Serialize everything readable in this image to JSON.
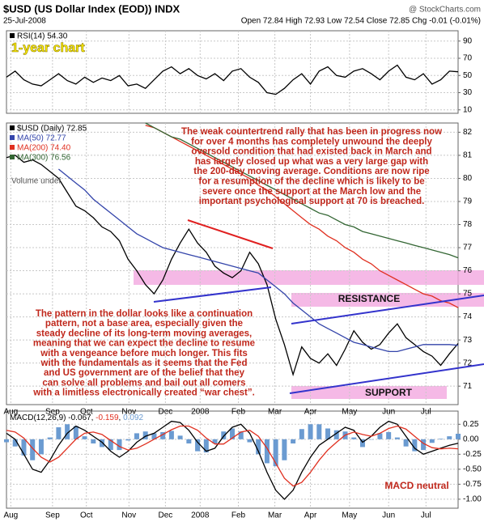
{
  "header": {
    "symbol": "$USD (US Dollar Index (EOD)) INDX",
    "date": "25-Jul-2008",
    "source": "@ StockCharts.com",
    "quote": "Open 72.84 High 72.93 Low 72.54 Close 72.85 Chg -0.01 (-0.01%)"
  },
  "annotations": {
    "period": "1-year chart",
    "volume": "Volume undef",
    "resistance": "RESISTANCE",
    "support": "SUPPORT",
    "macd_note": "MACD neutral",
    "commentary": [
      "The weak countertrend rally that has been in progress now",
      "for over 4 months has completely unwound the deeply",
      "oversold condition that had existed back in March and",
      "has largely closed up what was a very large gap with",
      "the 200-day moving average. Conditions are now ripe",
      "for a resumption of the decline which is likely to be",
      "severe once the support at the March low and the",
      "important psychological support at 70 is breached."
    ],
    "pattern": [
      "The pattern in the dollar looks like a continuation",
      "pattern, not a base area, especially given the",
      "steady decline of its long-term moving averages,",
      "meaning that we can expect the decline to resume",
      "with a vengeance before much longer. This fits",
      "with the fundamentals as it seems that the Fed",
      "and US government are of the belief that they",
      "can solve all problems and bail out all comers",
      "with a limitless electronically created “war chest”."
    ]
  },
  "chart_data": [
    {
      "type": "line",
      "xlim": [
        0,
        52
      ],
      "ylim": [
        6,
        102
      ],
      "yticks": [
        10,
        30,
        50,
        70,
        90
      ],
      "grid": true,
      "series": [
        {
          "name": "RSI(14) 54.30",
          "color": "#000000",
          "values": [
            48,
            55,
            45,
            40,
            38,
            45,
            52,
            44,
            40,
            48,
            42,
            47,
            44,
            50,
            38,
            40,
            35,
            45,
            55,
            60,
            52,
            58,
            50,
            46,
            52,
            44,
            55,
            58,
            48,
            42,
            30,
            28,
            35,
            45,
            52,
            40,
            55,
            60,
            50,
            48,
            55,
            58,
            52,
            45,
            55,
            62,
            48,
            45,
            52,
            40,
            45,
            55,
            54.3
          ]
        }
      ]
    },
    {
      "type": "line",
      "xlim": [
        0,
        52
      ],
      "ylim": [
        70.2,
        82.4
      ],
      "yticks": [
        71,
        72,
        73,
        74,
        75,
        76,
        77,
        78,
        79,
        80,
        81,
        82
      ],
      "grid": true,
      "xticks": [
        {
          "value": 0.5,
          "label": "Aug"
        },
        {
          "value": 5.3,
          "label": "Sep"
        },
        {
          "value": 9.2,
          "label": "Oct"
        },
        {
          "value": 14.1,
          "label": "Nov"
        },
        {
          "value": 18.3,
          "label": "Dec"
        },
        {
          "value": 22.3,
          "label": "2008"
        },
        {
          "value": 26.7,
          "label": "Feb"
        },
        {
          "value": 30.9,
          "label": "Mar"
        },
        {
          "value": 35,
          "label": "Apr"
        },
        {
          "value": 39.5,
          "label": "May"
        },
        {
          "value": 44,
          "label": "Jun"
        },
        {
          "value": 48.3,
          "label": "Jul"
        }
      ],
      "series": [
        {
          "name": "$USD (Daily) 72.85",
          "color": "#000000",
          "values": [
            80.9,
            81.0,
            80.7,
            80.8,
            80.6,
            80.3,
            80.0,
            79.4,
            78.8,
            78.6,
            78.3,
            77.9,
            77.7,
            77.3,
            76.5,
            76.0,
            75.4,
            75.0,
            75.6,
            76.5,
            77.2,
            77.8,
            77.2,
            76.8,
            76.2,
            75.9,
            75.7,
            76.0,
            76.8,
            76.3,
            75.4,
            73.9,
            72.8,
            71.5,
            72.7,
            72.2,
            72.0,
            72.4,
            71.9,
            72.6,
            73.4,
            72.9,
            72.6,
            72.8,
            73.3,
            73.7,
            73.1,
            72.8,
            72.5,
            72.3,
            71.9,
            72.4,
            72.85
          ]
        },
        {
          "name": "MA(50) 72.77",
          "color": "#3344aa",
          "values": [
            null,
            null,
            null,
            null,
            null,
            null,
            80.4,
            80.1,
            79.8,
            79.5,
            79.1,
            78.8,
            78.5,
            78.2,
            77.9,
            77.6,
            77.4,
            77.2,
            77.0,
            76.9,
            76.8,
            76.7,
            76.6,
            76.5,
            76.4,
            76.3,
            76.2,
            76.1,
            76.0,
            75.9,
            75.6,
            75.3,
            75.0,
            74.6,
            74.3,
            74.0,
            73.7,
            73.5,
            73.3,
            73.1,
            72.9,
            72.8,
            72.7,
            72.6,
            72.5,
            72.5,
            72.6,
            72.7,
            72.8,
            72.8,
            72.8,
            72.8,
            72.77
          ]
        },
        {
          "name": "MA(200) 74.40",
          "color": "#e03020",
          "values": [
            null,
            null,
            null,
            null,
            null,
            null,
            null,
            null,
            null,
            null,
            null,
            null,
            null,
            null,
            null,
            null,
            82.3,
            82.2,
            82.0,
            81.8,
            81.6,
            81.4,
            81.2,
            81.0,
            80.8,
            80.6,
            80.4,
            80.2,
            80.0,
            79.7,
            79.5,
            79.2,
            78.9,
            78.6,
            78.3,
            78.0,
            77.8,
            77.5,
            77.3,
            77.0,
            76.8,
            76.5,
            76.3,
            76.0,
            75.8,
            75.6,
            75.4,
            75.2,
            75.0,
            74.9,
            74.7,
            74.6,
            74.4
          ]
        },
        {
          "name": "MA(300) 76.56",
          "color": "#336633",
          "values": [
            null,
            null,
            null,
            null,
            null,
            null,
            null,
            null,
            null,
            null,
            null,
            null,
            null,
            null,
            null,
            null,
            82.4,
            82.2,
            82.0,
            81.8,
            81.7,
            81.5,
            81.3,
            81.1,
            80.9,
            80.7,
            80.5,
            80.3,
            80.1,
            79.9,
            79.7,
            79.5,
            79.3,
            79.1,
            78.9,
            78.7,
            78.5,
            78.4,
            78.2,
            78.0,
            77.9,
            77.7,
            77.6,
            77.5,
            77.4,
            77.3,
            77.2,
            77.1,
            77.0,
            76.9,
            76.8,
            76.7,
            76.56
          ]
        }
      ]
    },
    {
      "type": "line",
      "xlim": [
        0,
        52
      ],
      "ylim": [
        -1.15,
        0.47
      ],
      "grid": true,
      "yticks": [
        0.25,
        {
          "value": 0,
          "label": "0.00"
        },
        -0.25,
        {
          "value": -0.5,
          "label": "-0.50"
        },
        -0.75,
        {
          "value": -1,
          "label": "-1.00"
        }
      ],
      "xticks": [
        {
          "value": 0.5,
          "label": "Aug"
        },
        {
          "value": 5.3,
          "label": "Sep"
        },
        {
          "value": 9.2,
          "label": "Oct"
        },
        {
          "value": 14.1,
          "label": "Nov"
        },
        {
          "value": 18.3,
          "label": "Dec"
        },
        {
          "value": 22.3,
          "label": "2008"
        },
        {
          "value": 26.7,
          "label": "Feb"
        },
        {
          "value": 30.9,
          "label": "Mar"
        },
        {
          "value": 35,
          "label": "Apr"
        },
        {
          "value": 39.5,
          "label": "May"
        },
        {
          "value": 44,
          "label": "Jun"
        },
        {
          "value": 48.3,
          "label": "Jul"
        }
      ],
      "legend": {
        "label": "MACD(12,26,9)",
        "values": [
          "-0.067",
          "-0.159",
          "0.092"
        ]
      },
      "series": [
        {
          "name": "MACD",
          "type": "bar",
          "color": "#6b9bd1",
          "values": [
            -0.05,
            -0.12,
            -0.27,
            -0.35,
            -0.25,
            0.03,
            0.2,
            0.25,
            0.22,
            0.05,
            -0.07,
            -0.13,
            -0.18,
            -0.18,
            -0.02,
            0.1,
            0.13,
            0.1,
            0.12,
            0.14,
            0.06,
            -0.07,
            -0.2,
            -0.22,
            -0.07,
            0.13,
            0.18,
            0.13,
            -0.05,
            -0.25,
            -0.4,
            -0.45,
            -0.35,
            -0.07,
            0.17,
            0.25,
            0.25,
            0.18,
            0.15,
            0.13,
            0.03,
            -0.13,
            0.0,
            0.1,
            0.12,
            0.03,
            -0.12,
            -0.2,
            -0.18,
            -0.06,
            0.01,
            0.05,
            0.092
          ]
        },
        {
          "name": "MACD line",
          "color": "#000000",
          "values": [
            0.1,
            0.0,
            -0.25,
            -0.5,
            -0.55,
            -0.35,
            -0.1,
            0.1,
            0.22,
            0.15,
            0.05,
            -0.05,
            -0.2,
            -0.3,
            -0.2,
            -0.05,
            0.05,
            0.1,
            0.2,
            0.3,
            0.28,
            0.15,
            -0.05,
            -0.2,
            -0.15,
            0.05,
            0.2,
            0.25,
            0.1,
            -0.2,
            -0.55,
            -0.85,
            -1.0,
            -0.85,
            -0.55,
            -0.3,
            -0.1,
            0.0,
            0.1,
            0.2,
            0.15,
            -0.05,
            0.05,
            0.2,
            0.3,
            0.25,
            0.05,
            -0.15,
            -0.25,
            -0.2,
            -0.15,
            -0.1,
            -0.067
          ]
        },
        {
          "name": "Signal",
          "color": "#e03020",
          "values": [
            0.15,
            0.12,
            0.02,
            -0.15,
            -0.3,
            -0.38,
            -0.3,
            -0.15,
            0.0,
            0.1,
            0.12,
            0.08,
            -0.02,
            -0.12,
            -0.18,
            -0.15,
            -0.08,
            0.0,
            0.08,
            0.16,
            0.22,
            0.22,
            0.15,
            0.02,
            -0.08,
            -0.08,
            0.02,
            0.12,
            0.15,
            0.05,
            -0.15,
            -0.4,
            -0.65,
            -0.78,
            -0.72,
            -0.55,
            -0.35,
            -0.18,
            -0.05,
            0.07,
            0.12,
            0.08,
            0.05,
            0.1,
            0.18,
            0.22,
            0.17,
            0.05,
            -0.07,
            -0.14,
            -0.16,
            -0.15,
            -0.159
          ]
        }
      ]
    }
  ]
}
